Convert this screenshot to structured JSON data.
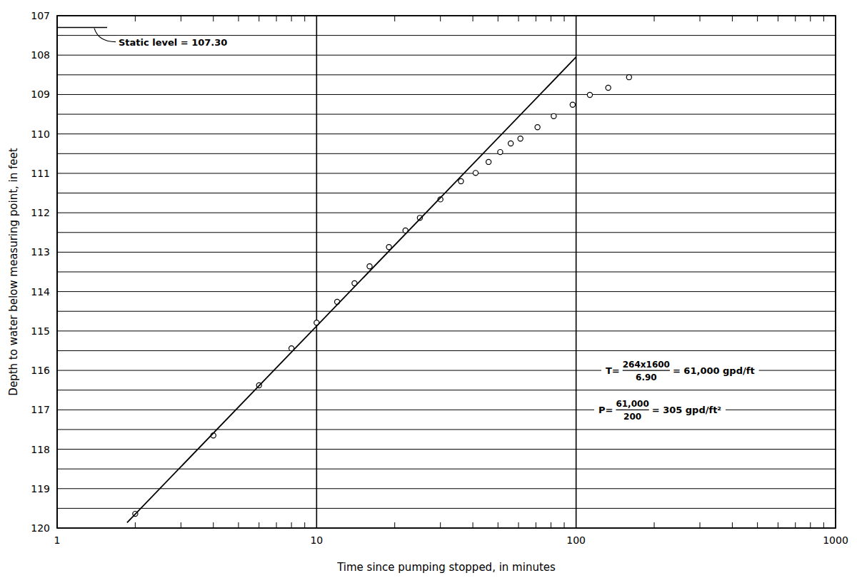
{
  "chart_data": {
    "type": "scatter",
    "x_label": "Time since pumping stopped, in minutes",
    "y_label": "Depth to water below measuring point, in feet",
    "log": "x",
    "grid": true,
    "xlim": [
      1,
      1000
    ],
    "xticks": [
      1,
      10,
      100,
      1000
    ],
    "ylim": [
      120,
      107
    ],
    "yticks": [
      107,
      108,
      109,
      110,
      111,
      112,
      113,
      114,
      115,
      116,
      117,
      118,
      119,
      120
    ],
    "series": [
      {
        "type": "scatter",
        "marker": "circle",
        "color": "#000000",
        "x": [
          2,
          4,
          6,
          8,
          10,
          12,
          14,
          16,
          19,
          22,
          25,
          30,
          36,
          41,
          46,
          51,
          56,
          61,
          71,
          82,
          97,
          113,
          133,
          160
        ],
        "values": [
          119.64,
          117.65,
          116.38,
          115.44,
          114.79,
          114.26,
          113.79,
          113.36,
          112.87,
          112.45,
          112.13,
          111.66,
          111.2,
          110.99,
          110.71,
          110.46,
          110.24,
          110.12,
          109.83,
          109.55,
          109.26,
          109.01,
          108.83,
          108.56
        ]
      },
      {
        "type": "line",
        "line_style": "solid",
        "color": "#000000",
        "x": [
          1.86,
          100
        ],
        "values": [
          119.86,
          108.05
        ]
      }
    ],
    "static_level": {
      "text": "Static level = 107.30",
      "value": 107.3
    },
    "annotations": [
      {
        "lhs": "T=",
        "numerator": "264x1600",
        "denominator": "6.90",
        "result": "= 61,000 gpd/ft"
      },
      {
        "lhs": "P=",
        "numerator": "61,000",
        "denominator": "200",
        "result": "= 305 gpd/ft²"
      }
    ]
  }
}
